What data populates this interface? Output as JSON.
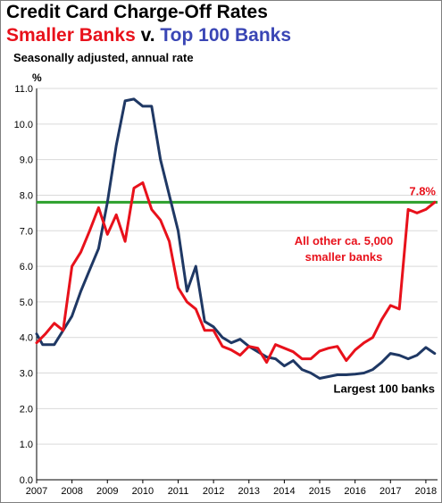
{
  "header": {
    "title": "Credit Card Charge-Off Rates",
    "subtitle_part1": "Smaller Banks",
    "subtitle_part2": " v. ",
    "subtitle_part3": "Top 100 Banks",
    "note": "Seasonally adjusted, annual rate"
  },
  "colors": {
    "small_banks": "#e8111b",
    "large_banks": "#1f3864",
    "reference_line": "#2ca02c",
    "subtitle_blue": "#3a46b5",
    "grid": "#d9d9d9"
  },
  "chart_data": {
    "type": "line",
    "ylabel": "%",
    "ylim": [
      0,
      11
    ],
    "y_ticks": [
      "0.0",
      "1.0",
      "2.0",
      "3.0",
      "4.0",
      "5.0",
      "6.0",
      "7.0",
      "8.0",
      "9.0",
      "10.0",
      "11.0"
    ],
    "xlim": [
      2007,
      2018.33
    ],
    "x_ticks": [
      "2007",
      "2008",
      "2009",
      "2010",
      "2011",
      "2012",
      "2013",
      "2014",
      "2015",
      "2016",
      "2017",
      "2018"
    ],
    "grid": "horizontal",
    "series": [
      {
        "name": "All other ca. 5,000 smaller banks",
        "color": "#e8111b",
        "x": [
          2007.0,
          2007.25,
          2007.5,
          2007.75,
          2008.0,
          2008.25,
          2008.5,
          2008.75,
          2009.0,
          2009.25,
          2009.5,
          2009.75,
          2010.0,
          2010.25,
          2010.5,
          2010.75,
          2011.0,
          2011.25,
          2011.5,
          2011.75,
          2012.0,
          2012.25,
          2012.5,
          2012.75,
          2013.0,
          2013.25,
          2013.5,
          2013.75,
          2014.0,
          2014.25,
          2014.5,
          2014.75,
          2015.0,
          2015.25,
          2015.5,
          2015.75,
          2016.0,
          2016.25,
          2016.5,
          2016.75,
          2017.0,
          2017.25,
          2017.5,
          2017.75,
          2018.0,
          2018.25
        ],
        "values": [
          3.85,
          4.1,
          4.4,
          4.2,
          6.0,
          6.4,
          7.0,
          7.65,
          6.9,
          7.45,
          6.7,
          8.2,
          8.35,
          7.6,
          7.3,
          6.7,
          5.4,
          5.0,
          4.8,
          4.2,
          4.2,
          3.75,
          3.65,
          3.5,
          3.75,
          3.7,
          3.3,
          3.8,
          3.7,
          3.6,
          3.4,
          3.4,
          3.62,
          3.7,
          3.75,
          3.35,
          3.65,
          3.85,
          4.0,
          4.5,
          4.9,
          4.8,
          7.6,
          7.5,
          7.6,
          7.8
        ]
      },
      {
        "name": "Largest 100 banks",
        "color": "#1f3864",
        "x": [
          2007.0,
          2007.17,
          2007.5,
          2007.75,
          2008.0,
          2008.25,
          2008.5,
          2008.75,
          2009.0,
          2009.25,
          2009.5,
          2009.75,
          2010.0,
          2010.25,
          2010.5,
          2010.75,
          2011.0,
          2011.25,
          2011.5,
          2011.75,
          2012.0,
          2012.25,
          2012.5,
          2012.75,
          2013.0,
          2013.25,
          2013.5,
          2013.75,
          2014.0,
          2014.25,
          2014.5,
          2014.75,
          2015.0,
          2015.25,
          2015.5,
          2015.75,
          2016.0,
          2016.25,
          2016.5,
          2016.75,
          2017.0,
          2017.25,
          2017.5,
          2017.75,
          2018.0,
          2018.25
        ],
        "values": [
          4.1,
          3.8,
          3.8,
          4.2,
          4.6,
          5.3,
          5.9,
          6.5,
          7.8,
          9.4,
          10.65,
          10.7,
          10.5,
          10.5,
          9.0,
          8.0,
          7.0,
          5.3,
          6.0,
          4.45,
          4.3,
          4.0,
          3.85,
          3.95,
          3.75,
          3.6,
          3.45,
          3.4,
          3.2,
          3.35,
          3.1,
          3.0,
          2.85,
          2.9,
          2.95,
          2.95,
          2.97,
          3.0,
          3.1,
          3.3,
          3.55,
          3.5,
          3.4,
          3.5,
          3.72,
          3.55
        ]
      }
    ],
    "reference_line": {
      "value": 7.8,
      "color": "#2ca02c"
    },
    "annotations": {
      "end_value": "7.8%",
      "small_banks_line1": "All other ca. 5,000",
      "small_banks_line2": "smaller banks",
      "large_banks": "Largest 100 banks"
    }
  }
}
